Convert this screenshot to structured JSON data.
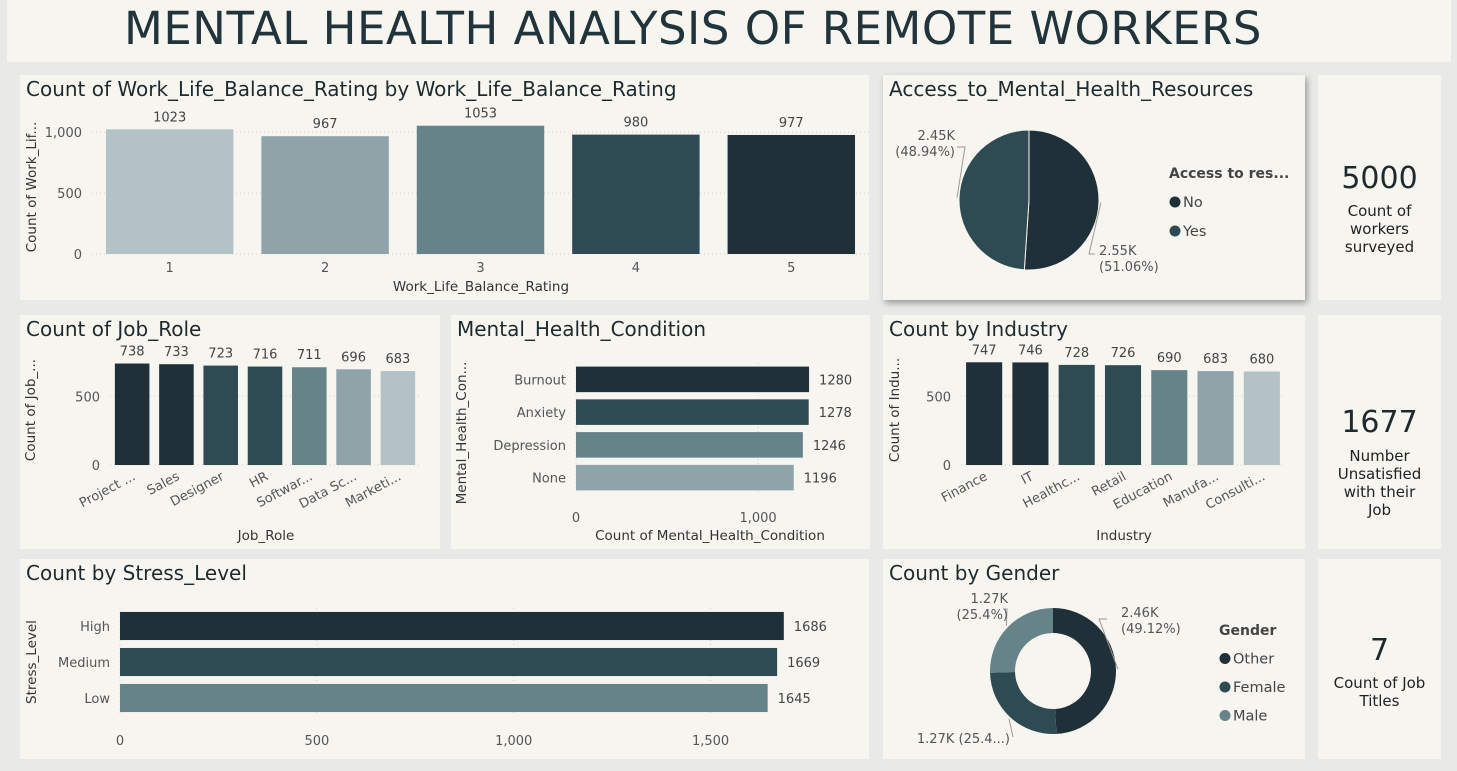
{
  "dashboard_title": "MENTAL HEALTH ANALYSIS OF REMOTE WORKERS",
  "colors": {
    "c1": "#1f3038",
    "c2": "#2e4b53",
    "c3": "#66838a",
    "c4": "#8fa3a9",
    "c5": "#b3c2c6",
    "panel": "#f6f5f0",
    "background": "#e9e9e7"
  },
  "kpis": [
    {
      "value": "5000",
      "label": "Count of workers surveyed"
    },
    {
      "value": "1677",
      "label": "Number Unsatisfied with their Job"
    },
    {
      "value": "7",
      "label": "Count of Job Titles"
    }
  ],
  "chart_data": [
    {
      "id": "wlb",
      "type": "bar",
      "title": "Count of Work_Life_Balance_Rating by Work_Life_Balance_Rating",
      "xlabel": "Work_Life_Balance_Rating",
      "ylabel": "Count of Work_Lif...",
      "categories": [
        "1",
        "2",
        "3",
        "4",
        "5"
      ],
      "values": [
        1023,
        967,
        1053,
        980,
        977
      ],
      "data_labels": [
        "1023",
        "967",
        "1053",
        "980",
        "977"
      ],
      "yticks": [
        "0",
        "500",
        "1,000"
      ],
      "ytick_values": [
        0,
        500,
        1000
      ],
      "ylim": [
        0,
        1100
      ],
      "grid": true
    },
    {
      "id": "access",
      "type": "pie",
      "title": "Access_to_Mental_Health_Resources",
      "legend_title": "Access to res...",
      "legend_position": "right",
      "slices": [
        {
          "name": "No",
          "value": 2553,
          "label": "2.55K",
          "pct": "(51.06%)"
        },
        {
          "name": "Yes",
          "value": 2447,
          "label": "2.45K",
          "pct": "(48.94%)"
        }
      ]
    },
    {
      "id": "jobrole",
      "type": "bar",
      "title": "Count of Job_Role",
      "xlabel": "Job_Role",
      "ylabel": "Count of Job_...",
      "categories": [
        "Project ...",
        "Sales",
        "Designer",
        "HR",
        "Softwar...",
        "Data Sc...",
        "Marketi..."
      ],
      "values": [
        738,
        733,
        723,
        716,
        711,
        696,
        683
      ],
      "data_labels": [
        "738",
        "733",
        "723",
        "716",
        "711",
        "696",
        "683"
      ],
      "yticks": [
        "0",
        "500"
      ],
      "ytick_values": [
        0,
        500
      ],
      "ylim": [
        0,
        800
      ],
      "grid": true
    },
    {
      "id": "mhc",
      "type": "bar",
      "orientation": "horizontal",
      "title": "Mental_Health_Condition",
      "xlabel": "Count of Mental_Health_Condition",
      "ylabel": "Mental_Health_Con...",
      "categories": [
        "Burnout",
        "Anxiety",
        "Depression",
        "None"
      ],
      "values": [
        1280,
        1278,
        1246,
        1196
      ],
      "data_labels": [
        "1280",
        "1278",
        "1246",
        "1196"
      ],
      "xticks": [
        "0",
        "1,000"
      ],
      "xtick_values": [
        0,
        1000
      ],
      "xlim": [
        0,
        1450
      ],
      "grid": true
    },
    {
      "id": "industry",
      "type": "bar",
      "title": "Count by Industry",
      "xlabel": "Industry",
      "ylabel": "Count of Indu...",
      "categories": [
        "Finance",
        "IT",
        "Healthc...",
        "Retail",
        "Education",
        "Manufa...",
        "Consulti..."
      ],
      "values": [
        747,
        746,
        728,
        726,
        690,
        683,
        680
      ],
      "data_labels": [
        "747",
        "746",
        "728",
        "726",
        "690",
        "683",
        "680"
      ],
      "yticks": [
        "0",
        "500"
      ],
      "ytick_values": [
        0,
        500
      ],
      "ylim": [
        0,
        800
      ],
      "grid": true
    },
    {
      "id": "stress",
      "type": "bar",
      "orientation": "horizontal",
      "title": "Count by Stress_Level",
      "xlabel": "",
      "ylabel": "Stress_Level",
      "categories": [
        "High",
        "Medium",
        "Low"
      ],
      "values": [
        1686,
        1669,
        1645
      ],
      "data_labels": [
        "1686",
        "1669",
        "1645"
      ],
      "xticks": [
        "0",
        "500",
        "1,000",
        "1,500"
      ],
      "xtick_values": [
        0,
        500,
        1000,
        1500
      ],
      "xlim": [
        0,
        1750
      ],
      "grid": true
    },
    {
      "id": "gender",
      "type": "pie",
      "donut": true,
      "title": "Count by Gender",
      "legend_title": "Gender",
      "legend_position": "right",
      "slices": [
        {
          "name": "Other",
          "value": 2456,
          "label": "2.46K",
          "pct": "(49.12%)"
        },
        {
          "name": "Female",
          "value": 1272,
          "label": "1.27K",
          "pct": "(25.4...)"
        },
        {
          "name": "Male",
          "value": 1272,
          "label": "1.27K",
          "pct": "(25.4%)"
        }
      ]
    }
  ]
}
